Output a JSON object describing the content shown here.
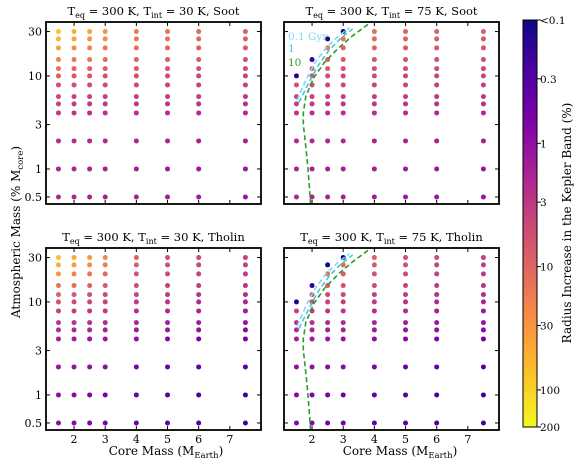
{
  "figure": {
    "ylabel": "Atmospheric Mass (% M",
    "ylabel_sub": "core",
    "xlabel": "Core Mass (M",
    "xlabel_sub": "Earth"
  },
  "colorbar": {
    "label": "Radius Increase in the Kepler Band (%)",
    "tick_labels": [
      "<0.1",
      "0.3",
      "1",
      "3",
      "10",
      "30",
      "100",
      "200"
    ],
    "tick_values": [
      0.1,
      0.3,
      1,
      3,
      10,
      30,
      100,
      200
    ],
    "range": [
      0.1,
      200
    ],
    "scale": "log",
    "colormap": "plasma-reversed"
  },
  "chart_data": [
    {
      "type": "scatter",
      "panel": "top-left",
      "title": {
        "a": "T",
        "a_sub": "eq",
        "b": " = 300 K, T",
        "b_sub": "int",
        "c": " = 30 K, Soot"
      },
      "x_grid": [
        1.5,
        2,
        2.5,
        3,
        4,
        5,
        6,
        7.5
      ],
      "y_grid": [
        0.5,
        1,
        2,
        4,
        5,
        6,
        8,
        10,
        12,
        15,
        20,
        25,
        30
      ],
      "xlim": [
        1.1,
        8.0
      ],
      "ylim": [
        0.42,
        38
      ],
      "yscale": "log",
      "xticks": [
        2,
        3,
        4,
        5,
        6,
        7
      ],
      "yticks": [
        0.5,
        1,
        3,
        10,
        30
      ],
      "ytick_labels": [
        "0.5",
        "1",
        "3",
        "10",
        "30"
      ],
      "x_axis_labels": false,
      "y_axis_labels": true,
      "values_by_column": [
        [
          1.9,
          1.9,
          2.3,
          3,
          4,
          5,
          6,
          8,
          12,
          20,
          40,
          60,
          80
        ],
        [
          1.8,
          1.8,
          2.2,
          2.8,
          3.5,
          4.5,
          5.5,
          7,
          10,
          15,
          25,
          40,
          50
        ],
        [
          1.7,
          1.7,
          2.1,
          2.6,
          3.3,
          4.2,
          5,
          6.5,
          9,
          13,
          20,
          30,
          40
        ],
        [
          1.6,
          1.6,
          2,
          2.5,
          3.2,
          4,
          4.8,
          6,
          8,
          11,
          16,
          25,
          30
        ],
        [
          1.5,
          1.5,
          1.9,
          2.4,
          3,
          3.8,
          4.5,
          5.5,
          7,
          9,
          12,
          15,
          18
        ],
        [
          1.4,
          1.4,
          1.8,
          2.3,
          2.9,
          3.6,
          4.2,
          5,
          6,
          8,
          10,
          12,
          14
        ],
        [
          1.3,
          1.3,
          1.7,
          2.2,
          2.8,
          3.4,
          4,
          4.5,
          5.5,
          7,
          8,
          10,
          11
        ],
        [
          1.2,
          1.2,
          1.6,
          2,
          2.6,
          3.2,
          3.6,
          4.2,
          5,
          6,
          7,
          8,
          9
        ]
      ]
    },
    {
      "type": "scatter",
      "panel": "top-right",
      "title": {
        "a": "T",
        "a_sub": "eq",
        "b": " = 300 K, T",
        "b_sub": "int",
        "c": " = 75 K, Soot"
      },
      "x_grid": [
        1.5,
        2,
        2.5,
        3,
        4,
        5,
        6,
        7.5
      ],
      "y_grid": [
        0.5,
        1,
        2,
        4,
        5,
        6,
        8,
        10,
        12,
        15,
        20,
        25,
        30
      ],
      "xlim": [
        1.1,
        8.0
      ],
      "ylim": [
        0.42,
        38
      ],
      "yscale": "log",
      "xticks": [
        2,
        3,
        4,
        5,
        6,
        7
      ],
      "yticks": [
        0.5,
        1,
        3,
        10,
        30
      ],
      "x_axis_labels": false,
      "y_axis_labels": false,
      "values_by_column": [
        [
          1.8,
          1.8,
          2.2,
          2.8,
          3.5,
          4.5,
          6,
          0.15,
          0,
          0,
          0,
          0,
          0
        ],
        [
          1.7,
          1.7,
          2.1,
          2.6,
          3.3,
          4.2,
          5,
          6,
          8,
          0.2,
          0,
          0,
          0
        ],
        [
          1.6,
          1.6,
          2,
          2.5,
          3.2,
          4,
          4.8,
          5.5,
          7,
          9,
          15,
          0.12,
          0
        ],
        [
          1.5,
          1.5,
          1.9,
          2.4,
          3,
          3.8,
          4.5,
          5,
          6,
          7,
          9,
          14,
          0.1
        ],
        [
          1.45,
          1.45,
          1.85,
          2.35,
          2.9,
          3.6,
          4.2,
          4.8,
          5.5,
          6.5,
          8,
          10,
          12
        ],
        [
          1.35,
          1.35,
          1.75,
          2.25,
          2.8,
          3.5,
          4,
          4.5,
          5.2,
          6,
          7.5,
          9,
          10
        ],
        [
          1.25,
          1.25,
          1.65,
          2.1,
          2.7,
          3.3,
          3.8,
          4.3,
          5,
          5.6,
          6.5,
          8,
          9
        ],
        [
          1.15,
          1.15,
          1.55,
          2,
          2.5,
          3.1,
          3.5,
          4,
          4.6,
          5.2,
          6,
          7,
          8
        ]
      ],
      "present_by_column": [
        [
          1,
          1,
          1,
          1,
          1,
          1,
          1,
          1,
          0,
          0,
          0,
          0,
          0
        ],
        [
          1,
          1,
          1,
          1,
          1,
          1,
          1,
          1,
          1,
          1,
          0,
          0,
          0
        ],
        [
          1,
          1,
          1,
          1,
          1,
          1,
          1,
          1,
          1,
          1,
          1,
          1,
          0
        ],
        [
          1,
          1,
          1,
          1,
          1,
          1,
          1,
          1,
          1,
          1,
          1,
          1,
          1
        ],
        [
          1,
          1,
          1,
          1,
          1,
          1,
          1,
          1,
          1,
          1,
          1,
          1,
          1
        ],
        [
          1,
          1,
          1,
          1,
          1,
          1,
          1,
          1,
          1,
          1,
          1,
          1,
          1
        ],
        [
          1,
          1,
          1,
          1,
          1,
          1,
          1,
          1,
          1,
          1,
          1,
          1,
          1
        ],
        [
          1,
          1,
          1,
          1,
          1,
          1,
          1,
          1,
          1,
          1,
          1,
          1,
          1
        ]
      ],
      "curves": [
        {
          "label": "0.1 Gyr",
          "color": "#7fd8ec",
          "points": [
            [
              1.52,
              5.5
            ],
            [
              1.8,
              9
            ],
            [
              2.1,
              14
            ],
            [
              2.45,
              20
            ],
            [
              2.8,
              26
            ],
            [
              3.2,
              33
            ]
          ]
        },
        {
          "label": "1",
          "color": "#3ec9e0",
          "points": [
            [
              1.58,
              5.2
            ],
            [
              1.9,
              8.5
            ],
            [
              2.2,
              13
            ],
            [
              2.55,
              19
            ],
            [
              2.9,
              25
            ],
            [
              3.3,
              32
            ]
          ]
        },
        {
          "label": "10",
          "color": "#2a9d2a",
          "points": [
            [
              1.95,
              0.42
            ],
            [
              1.92,
              0.6
            ],
            [
              1.87,
              1
            ],
            [
              1.82,
              1.5
            ],
            [
              1.76,
              2.3
            ],
            [
              1.72,
              3
            ],
            [
              1.72,
              4
            ],
            [
              1.8,
              6
            ],
            [
              2.05,
              9.5
            ],
            [
              2.4,
              14
            ],
            [
              2.85,
              20
            ],
            [
              3.3,
              27
            ],
            [
              3.9,
              38
            ]
          ]
        }
      ]
    },
    {
      "type": "scatter",
      "panel": "bottom-left",
      "title": {
        "a": "T",
        "a_sub": "eq",
        "b": " = 300 K, T",
        "b_sub": "int",
        "c": " = 30 K, Tholin"
      },
      "x_grid": [
        1.5,
        2,
        2.5,
        3,
        4,
        5,
        6,
        7.5
      ],
      "y_grid": [
        0.5,
        1,
        2,
        4,
        5,
        6,
        8,
        10,
        12,
        15,
        20,
        25,
        30
      ],
      "xlim": [
        1.1,
        8.0
      ],
      "ylim": [
        0.42,
        38
      ],
      "yscale": "log",
      "xticks": [
        2,
        3,
        4,
        5,
        6,
        7
      ],
      "xtick_labels": [
        "2",
        "3",
        "4",
        "5",
        "6",
        "7"
      ],
      "yticks": [
        0.5,
        1,
        3,
        10,
        30
      ],
      "ytick_labels": [
        "0.5",
        "1",
        "3",
        "10",
        "30"
      ],
      "x_axis_labels": true,
      "y_axis_labels": true,
      "values_by_column": [
        [
          0.9,
          0.9,
          1.2,
          1.6,
          2.2,
          3,
          4,
          6,
          9,
          15,
          30,
          50,
          70
        ],
        [
          0.8,
          0.8,
          1.1,
          1.5,
          2,
          2.7,
          3.5,
          5,
          7,
          11,
          20,
          35,
          45
        ],
        [
          0.7,
          0.7,
          1,
          1.3,
          1.8,
          2.4,
          3.2,
          4.5,
          6,
          9,
          15,
          25,
          32
        ],
        [
          0.6,
          0.6,
          0.9,
          1.2,
          1.6,
          2.2,
          3,
          4,
          5,
          7,
          11,
          18,
          22
        ],
        [
          0.45,
          0.45,
          0.7,
          1,
          1.4,
          1.9,
          2.5,
          3.2,
          4,
          5,
          6.5,
          8,
          9
        ],
        [
          0.35,
          0.35,
          0.55,
          0.8,
          1.2,
          1.6,
          2.1,
          2.6,
          3.2,
          4,
          5,
          5.5,
          6
        ],
        [
          0.28,
          0.28,
          0.45,
          0.7,
          1,
          1.4,
          1.8,
          2.2,
          2.7,
          3.3,
          4,
          4.5,
          5
        ],
        [
          0.2,
          0.2,
          0.35,
          0.55,
          0.8,
          1.1,
          1.4,
          1.8,
          2.2,
          2.6,
          3.1,
          3.5,
          4
        ]
      ]
    },
    {
      "type": "scatter",
      "panel": "bottom-right",
      "title": {
        "a": "T",
        "a_sub": "eq",
        "b": " = 300 K, T",
        "b_sub": "int",
        "c": " = 75 K, Tholin"
      },
      "x_grid": [
        1.5,
        2,
        2.5,
        3,
        4,
        5,
        6,
        7.5
      ],
      "y_grid": [
        0.5,
        1,
        2,
        4,
        5,
        6,
        8,
        10,
        12,
        15,
        20,
        25,
        30
      ],
      "xlim": [
        1.1,
        8.0
      ],
      "ylim": [
        0.42,
        38
      ],
      "yscale": "log",
      "xticks": [
        2,
        3,
        4,
        5,
        6,
        7
      ],
      "xtick_labels": [
        "2",
        "3",
        "4",
        "5",
        "6",
        "7"
      ],
      "yticks": [
        0.5,
        1,
        3,
        10,
        30
      ],
      "x_axis_labels": true,
      "y_axis_labels": false,
      "values_by_column": [
        [
          0.8,
          0.8,
          1.1,
          1.5,
          2,
          2.7,
          4,
          0.12,
          0,
          0,
          0,
          0,
          0
        ],
        [
          0.7,
          0.7,
          1,
          1.3,
          1.8,
          2.4,
          3.2,
          4.5,
          6,
          0.15,
          0,
          0,
          0
        ],
        [
          0.6,
          0.6,
          0.9,
          1.2,
          1.6,
          2.2,
          3,
          4,
          5,
          7,
          12,
          0.11,
          0
        ],
        [
          0.5,
          0.5,
          0.8,
          1.1,
          1.5,
          2,
          2.7,
          3.5,
          4.5,
          6,
          8,
          12,
          0.1
        ],
        [
          0.4,
          0.4,
          0.65,
          0.95,
          1.3,
          1.8,
          2.3,
          3,
          3.8,
          4.8,
          6,
          7.5,
          9
        ],
        [
          0.32,
          0.32,
          0.52,
          0.78,
          1.1,
          1.5,
          2,
          2.5,
          3.1,
          3.9,
          4.8,
          5.5,
          6
        ],
        [
          0.26,
          0.26,
          0.42,
          0.65,
          0.95,
          1.3,
          1.7,
          2.1,
          2.6,
          3.2,
          3.8,
          4.4,
          5
        ],
        [
          0.2,
          0.2,
          0.33,
          0.52,
          0.78,
          1.05,
          1.35,
          1.7,
          2.1,
          2.5,
          3,
          3.4,
          3.8
        ]
      ],
      "present_by_column": [
        [
          1,
          1,
          1,
          1,
          1,
          1,
          1,
          1,
          0,
          0,
          0,
          0,
          0
        ],
        [
          1,
          1,
          1,
          1,
          1,
          1,
          1,
          1,
          1,
          1,
          0,
          0,
          0
        ],
        [
          1,
          1,
          1,
          1,
          1,
          1,
          1,
          1,
          1,
          1,
          1,
          1,
          0
        ],
        [
          1,
          1,
          1,
          1,
          1,
          1,
          1,
          1,
          1,
          1,
          1,
          1,
          1
        ],
        [
          1,
          1,
          1,
          1,
          1,
          1,
          1,
          1,
          1,
          1,
          1,
          1,
          1
        ],
        [
          1,
          1,
          1,
          1,
          1,
          1,
          1,
          1,
          1,
          1,
          1,
          1,
          1
        ],
        [
          1,
          1,
          1,
          1,
          1,
          1,
          1,
          1,
          1,
          1,
          1,
          1,
          1
        ],
        [
          1,
          1,
          1,
          1,
          1,
          1,
          1,
          1,
          1,
          1,
          1,
          1,
          1
        ]
      ],
      "curves": [
        {
          "label": "0.1 Gyr",
          "color": "#7fd8ec",
          "points": [
            [
              1.52,
              5.5
            ],
            [
              1.8,
              9
            ],
            [
              2.1,
              14
            ],
            [
              2.45,
              20
            ],
            [
              2.8,
              26
            ],
            [
              3.2,
              33
            ]
          ]
        },
        {
          "label": "1",
          "color": "#3ec9e0",
          "points": [
            [
              1.58,
              5.2
            ],
            [
              1.9,
              8.5
            ],
            [
              2.2,
              13
            ],
            [
              2.55,
              19
            ],
            [
              2.9,
              25
            ],
            [
              3.3,
              32
            ]
          ]
        },
        {
          "label": "10",
          "color": "#2a9d2a",
          "points": [
            [
              1.95,
              0.42
            ],
            [
              1.92,
              0.6
            ],
            [
              1.87,
              1
            ],
            [
              1.82,
              1.5
            ],
            [
              1.76,
              2.3
            ],
            [
              1.72,
              3
            ],
            [
              1.72,
              4
            ],
            [
              1.8,
              6
            ],
            [
              2.05,
              9.5
            ],
            [
              2.4,
              14
            ],
            [
              2.85,
              20
            ],
            [
              3.3,
              27
            ],
            [
              3.9,
              38
            ]
          ]
        }
      ],
      "curve_labels_shown": false
    }
  ]
}
